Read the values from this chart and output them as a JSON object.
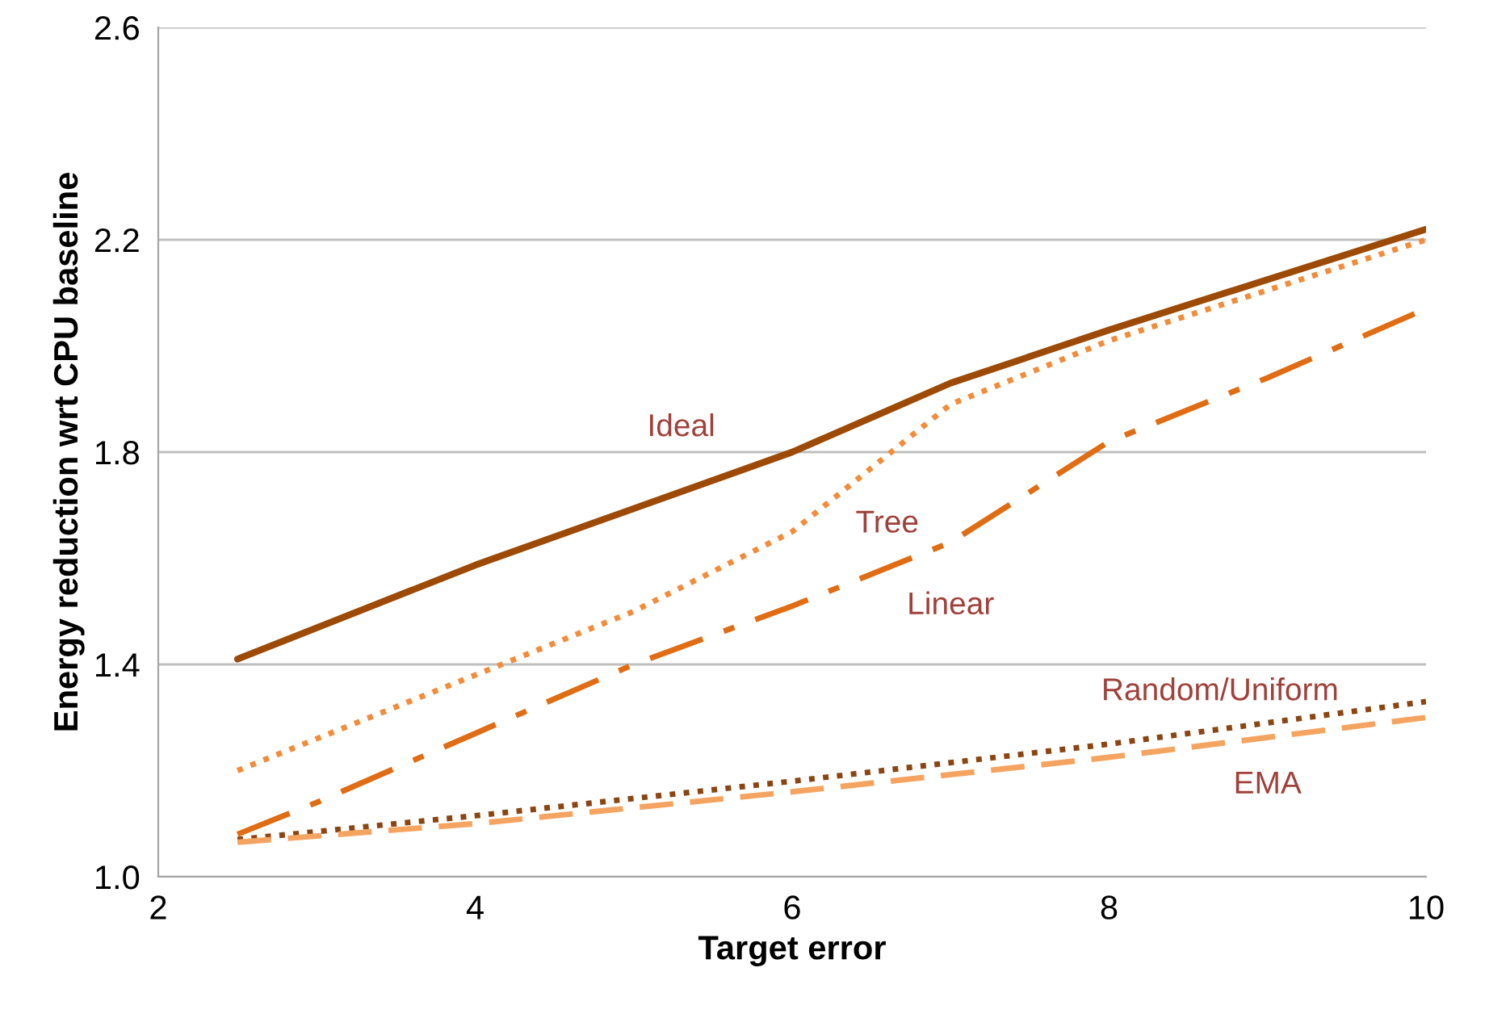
{
  "chart_data": {
    "type": "line",
    "xlabel": "Target error",
    "ylabel": "Energy reduction wrt CPU baseline",
    "xlim": [
      2,
      10
    ],
    "xticks": [
      2,
      4,
      6,
      8,
      10
    ],
    "ylim": [
      1.0,
      2.6
    ],
    "yticks": [
      {
        "value": 1.0,
        "label": "1.0"
      },
      1.4,
      1.8,
      2.2,
      2.6
    ],
    "grid": "y",
    "legend": false,
    "series": [
      {
        "name": "Ideal",
        "color": "#9c4a06",
        "line_style": "solid",
        "x": [
          2.5,
          4,
          6,
          7,
          8,
          10
        ],
        "values": [
          1.41,
          1.587,
          1.8,
          1.93,
          2.03,
          2.22
        ]
      },
      {
        "name": "Tree",
        "color": "#f28c3b",
        "line_style": "dotted",
        "x": [
          2.5,
          4,
          5,
          6,
          7,
          8,
          10
        ],
        "values": [
          1.2,
          1.38,
          1.5,
          1.65,
          1.89,
          2.01,
          2.2
        ]
      },
      {
        "name": "Linear",
        "color": "#e06c14",
        "line_style": "dashdot",
        "x": [
          2.5,
          3,
          4,
          5,
          6,
          7,
          8,
          9,
          10
        ],
        "values": [
          1.08,
          1.14,
          1.27,
          1.4,
          1.51,
          1.63,
          1.82,
          1.94,
          2.07
        ]
      },
      {
        "name": "Random/Uniform",
        "color": "#8b4513",
        "line_style": "dotted",
        "x": [
          2.5,
          4,
          6,
          8,
          10
        ],
        "values": [
          1.07,
          1.115,
          1.18,
          1.25,
          1.33
        ]
      },
      {
        "name": "EMA",
        "color": "#f4a460",
        "line_style": "dashed",
        "x": [
          2.5,
          4,
          6,
          8,
          10
        ],
        "values": [
          1.065,
          1.1,
          1.16,
          1.225,
          1.3
        ]
      }
    ]
  }
}
